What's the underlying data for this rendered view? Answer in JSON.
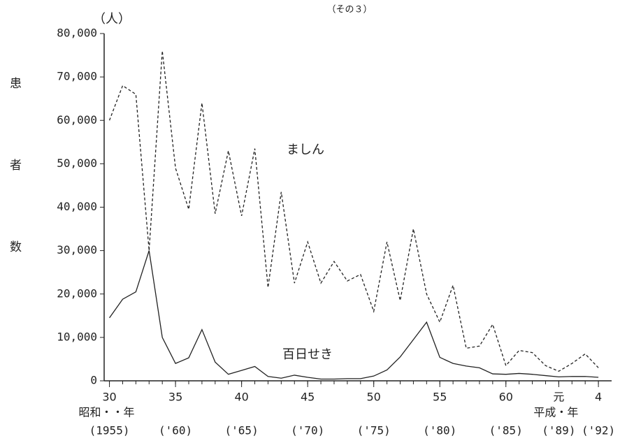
{
  "chart_data": {
    "type": "line",
    "title": "（その３）",
    "unit_label": "（人）",
    "y_label": "患者数",
    "x": [
      1955,
      1956,
      1957,
      1958,
      1959,
      1960,
      1961,
      1962,
      1963,
      1964,
      1965,
      1966,
      1967,
      1968,
      1969,
      1970,
      1971,
      1972,
      1973,
      1974,
      1975,
      1976,
      1977,
      1978,
      1979,
      1980,
      1981,
      1982,
      1983,
      1984,
      1985,
      1986,
      1987,
      1988,
      1989,
      1990,
      1991,
      1992
    ],
    "series": [
      {
        "name": "ましん",
        "color": "#222222",
        "line_style": "dashed",
        "values": [
          60000,
          68000,
          66000,
          30000,
          76000,
          49000,
          39500,
          64000,
          38500,
          53000,
          38000,
          53500,
          21500,
          43500,
          22500,
          32000,
          22500,
          27500,
          23000,
          24500,
          16000,
          32000,
          18500,
          35000,
          20000,
          13500,
          22000,
          7500,
          8000,
          13000,
          3500,
          7000,
          6500,
          3500,
          2200,
          4000,
          6200,
          3000
        ]
      },
      {
        "name": "百日せき",
        "color": "#222222",
        "line_style": "solid",
        "values": [
          14500,
          18800,
          20500,
          30000,
          10000,
          4000,
          5300,
          11800,
          4300,
          1500,
          2400,
          3300,
          1000,
          600,
          1300,
          800,
          400,
          400,
          500,
          500,
          1100,
          2500,
          5500,
          9500,
          13500,
          5400,
          4000,
          3400,
          3000,
          1600,
          1500,
          1700,
          1500,
          1200,
          900,
          1000,
          1000,
          800
        ]
      }
    ],
    "xlim": [
      1954.6,
      1993
    ],
    "ylim": [
      0,
      80000
    ],
    "yticks": [
      0,
      {
        "value": 10000,
        "label": "10,000"
      },
      {
        "value": 20000,
        "label": "20,000"
      },
      {
        "value": 30000,
        "label": "30,000"
      },
      {
        "value": 40000,
        "label": "40,000"
      },
      {
        "value": 50000,
        "label": "50,000"
      },
      {
        "value": 60000,
        "label": "60,000"
      },
      {
        "value": 70000,
        "label": "70,000"
      },
      {
        "value": 80000,
        "label": "80,000"
      }
    ],
    "xticks": [
      {
        "value": 1955,
        "label": "30"
      },
      {
        "value": 1960,
        "label": "35"
      },
      {
        "value": 1965,
        "label": "40"
      },
      {
        "value": 1970,
        "label": "45"
      },
      {
        "value": 1975,
        "label": "50"
      },
      {
        "value": 1980,
        "label": "55"
      },
      {
        "value": 1985,
        "label": "60"
      },
      {
        "value": 1989,
        "label": "元"
      },
      {
        "value": 1992,
        "label": "4"
      }
    ],
    "xticks_secondary": [
      {
        "value": 1955,
        "label": "(1955)"
      },
      {
        "value": 1960,
        "label": "('60)"
      },
      {
        "value": 1965,
        "label": "('65)"
      },
      {
        "value": 1970,
        "label": "('70)"
      },
      {
        "value": 1975,
        "label": "('75)"
      },
      {
        "value": 1980,
        "label": "('80)"
      },
      {
        "value": 1985,
        "label": "('85)"
      },
      {
        "value": 1989,
        "label": "('89)"
      },
      {
        "value": 1992,
        "label": "('92)"
      }
    ],
    "era_labels": [
      {
        "value": 1955,
        "label": "昭和・・年"
      },
      {
        "value": 1989,
        "label": "平成・年"
      }
    ],
    "grid": false
  }
}
